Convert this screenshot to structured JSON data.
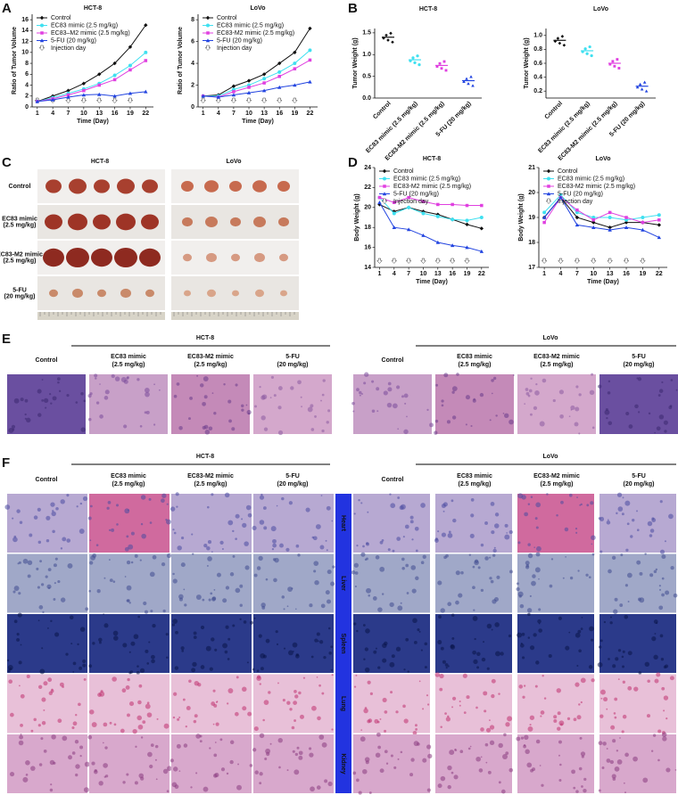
{
  "panel_labels": [
    "A",
    "B",
    "C",
    "D",
    "E",
    "F"
  ],
  "chart_data": [
    {
      "type": "line",
      "title": "HCT-8",
      "xlabel": "Time (Day)",
      "ylabel": "Ratio of Tumor Volume",
      "x": [
        1,
        4,
        7,
        10,
        13,
        16,
        19,
        22
      ],
      "xlim": [
        0,
        23.5
      ],
      "xticks": [
        1,
        4,
        7,
        10,
        13,
        16,
        19,
        22
      ],
      "ylim": [
        0,
        17
      ],
      "yticks": [
        0,
        2,
        4,
        6,
        8,
        10,
        12,
        14,
        16
      ],
      "legend": "upper left",
      "injection_days": [
        1,
        4,
        7,
        10,
        13,
        16,
        19
      ],
      "injection_label": "Injection day",
      "series": [
        {
          "name": "Control",
          "color": "#111111",
          "values": [
            1,
            2,
            3,
            4.3,
            6,
            8,
            11,
            15
          ]
        },
        {
          "name": "EC83 mimic (2.5 mg/kg)",
          "color": "#3fe0f0",
          "values": [
            1,
            1.7,
            2.5,
            3.3,
            4.3,
            5.8,
            7.6,
            10
          ]
        },
        {
          "name": "EC83–M2 mimic (2.5 mg/kg)",
          "color": "#e040e0",
          "values": [
            1,
            1.5,
            2.2,
            3,
            4,
            5,
            6.8,
            8.5
          ]
        },
        {
          "name": "5-FU (20 mg/kg)",
          "color": "#2244e0",
          "values": [
            1,
            1.3,
            1.8,
            2.2,
            2.3,
            2,
            2.5,
            2.8
          ]
        }
      ]
    },
    {
      "type": "line",
      "title": "LoVo",
      "xlabel": "Time (Day)",
      "ylabel": "Ratio of Tumor Volume",
      "x": [
        1,
        4,
        7,
        10,
        13,
        16,
        19,
        22
      ],
      "xlim": [
        0,
        23.5
      ],
      "xticks": [
        1,
        4,
        7,
        10,
        13,
        16,
        19,
        22
      ],
      "ylim": [
        0,
        8.5
      ],
      "yticks": [
        0,
        2,
        4,
        6,
        8
      ],
      "legend": "upper left",
      "injection_days": [
        1,
        4,
        7,
        10,
        13,
        16,
        19
      ],
      "injection_label": "Injection day",
      "series": [
        {
          "name": "Control",
          "color": "#111111",
          "values": [
            1,
            1.1,
            1.9,
            2.4,
            3,
            4,
            5,
            7.2
          ]
        },
        {
          "name": "EC83 mimic (2.5 mg/kg)",
          "color": "#3fe0f0",
          "values": [
            1,
            1,
            1.6,
            2,
            2.6,
            3.2,
            4,
            5.2
          ]
        },
        {
          "name": "EC83-M2 mimic (2.5 mg/kg)",
          "color": "#e040e0",
          "values": [
            1,
            0.9,
            1.4,
            1.8,
            2.2,
            2.8,
            3.5,
            4.3
          ]
        },
        {
          "name": "5-FU (20 mg/kg)",
          "color": "#2244e0",
          "values": [
            1,
            0.9,
            1.1,
            1.3,
            1.5,
            1.8,
            2,
            2.3
          ]
        }
      ]
    },
    {
      "type": "dot",
      "title": "HCT-8",
      "ylabel": "Tumor Weight (g)",
      "categories": [
        "Control",
        "EC83 mimic (2.5 mg/kg)",
        "EC83-M2 mimic (2.5 mg/kg)",
        "5-FU (20 mg/kg)"
      ],
      "values": [
        1.4,
        0.88,
        0.75,
        0.4
      ],
      "colors": [
        "#111111",
        "#3fe0f0",
        "#e040e0",
        "#2244e0"
      ],
      "ylim": [
        0,
        1.6
      ],
      "yticks": [
        {
          "value": 0,
          "label": "0.0"
        },
        0.5,
        {
          "value": 1,
          "label": "1.0"
        },
        1.5
      ]
    },
    {
      "type": "dot",
      "title": "LoVo",
      "ylabel": "Tumor Weight (g)",
      "categories": [
        "Control",
        "EC83 mimic (2.5 mg/kg)",
        "EC83-M2 mimic (2.5 mg/kg)",
        "5-FU (20 mg/kg)"
      ],
      "values": [
        0.93,
        0.78,
        0.6,
        0.27
      ],
      "colors": [
        "#111111",
        "#3fe0f0",
        "#e040e0",
        "#2244e0"
      ],
      "ylim": [
        0.1,
        1.1
      ],
      "yticks": [
        0.2,
        0.4,
        0.6,
        0.8,
        {
          "value": 1,
          "label": "1.0"
        }
      ]
    },
    {
      "type": "line",
      "title": "HCT-8",
      "xlabel": "Time (Day)",
      "ylabel": "Body Weight (g)",
      "x": [
        1,
        4,
        7,
        10,
        13,
        16,
        19,
        22
      ],
      "xlim": [
        0,
        23.5
      ],
      "xticks": [
        1,
        4,
        7,
        10,
        13,
        16,
        19,
        22
      ],
      "ylim": [
        14,
        24
      ],
      "yticks": [
        14,
        16,
        18,
        20,
        22,
        24
      ],
      "legend": "upper left",
      "injection_days": [
        1,
        4,
        7,
        10,
        13,
        16,
        19
      ],
      "injection_label": "Injection day",
      "series": [
        {
          "name": "Control",
          "color": "#111111",
          "values": [
            20.3,
            19.6,
            20,
            19.6,
            19.3,
            18.8,
            18.3,
            17.9
          ]
        },
        {
          "name": "EC83 mimic (2.5 mg/kg)",
          "color": "#3fe0f0",
          "values": [
            21,
            19.4,
            20,
            19.4,
            19.1,
            18.8,
            18.7,
            19
          ]
        },
        {
          "name": "EC83-M2 mimic (2.5 mg/kg)",
          "color": "#e040e0",
          "values": [
            21,
            20.5,
            21,
            20.6,
            20.3,
            20.3,
            20.2,
            20.2
          ]
        },
        {
          "name": "5-FU (20 mg/kg)",
          "color": "#2244e0",
          "values": [
            20.5,
            18,
            17.8,
            17.2,
            16.5,
            16.2,
            16,
            15.6
          ]
        }
      ]
    },
    {
      "type": "line",
      "title": "LoVo",
      "xlabel": "Time (Day)",
      "ylabel": "Body Weight (g)",
      "x": [
        1,
        4,
        7,
        10,
        13,
        16,
        19,
        22
      ],
      "xlim": [
        0,
        23.5
      ],
      "xticks": [
        1,
        4,
        7,
        10,
        13,
        16,
        19,
        22
      ],
      "ylim": [
        17,
        21
      ],
      "yticks": [
        17,
        18,
        19,
        20,
        21
      ],
      "legend": "upper left",
      "injection_days": [
        1,
        4,
        7,
        10,
        13,
        16,
        19
      ],
      "injection_label": "Injection day",
      "series": [
        {
          "name": "Control",
          "color": "#111111",
          "values": [
            19,
            19.8,
            19,
            18.8,
            18.6,
            18.8,
            18.8,
            18.7
          ]
        },
        {
          "name": "EC83 mimic (2.5 mg/kg)",
          "color": "#3fe0f0",
          "values": [
            19.2,
            19.9,
            19.2,
            19,
            19,
            18.9,
            19,
            19.1
          ]
        },
        {
          "name": "EC83-M2 mimic (2.5 mg/kg)",
          "color": "#e040e0",
          "values": [
            18.8,
            19.8,
            19.3,
            18.9,
            19.2,
            19,
            18.8,
            18.9
          ]
        },
        {
          "name": "5-FU (20 mg/kg)",
          "color": "#2244e0",
          "values": [
            19,
            19.8,
            18.7,
            18.6,
            18.5,
            18.6,
            18.5,
            18.2
          ]
        }
      ]
    }
  ],
  "panel_c": {
    "titles": [
      "HCT-8",
      "LoVo"
    ],
    "rows": [
      [
        "Control"
      ],
      [
        "EC83 mimic",
        "(2.5 mg/kg)"
      ],
      [
        "EC83-M2  mimic",
        "(2.5 mg/kg)"
      ],
      [
        "5-FU",
        "(20 mg/kg)"
      ]
    ]
  },
  "panel_e": {
    "cell_lines": [
      "HCT-8",
      "LoVo"
    ],
    "columns": [
      [
        "Control"
      ],
      [
        "EC83  mimic",
        "(2.5 mg/kg)"
      ],
      [
        "EC83-M2  mimic",
        "(2.5 mg/kg)"
      ],
      [
        "5-FU",
        "(20 mg/kg)"
      ]
    ]
  },
  "panel_f": {
    "cell_lines": [
      "HCT-8",
      "LoVo"
    ],
    "columns": [
      [
        "Control"
      ],
      [
        "EC83  mimic",
        "(2.5 mg/kg)"
      ],
      [
        "EC83-M2  mimic",
        "(2.5 mg/kg)"
      ],
      [
        "5-FU",
        "(20 mg/kg)"
      ]
    ],
    "organs": [
      "Heart",
      "Liver",
      "Spleen",
      "Lung",
      "Kidney"
    ]
  }
}
